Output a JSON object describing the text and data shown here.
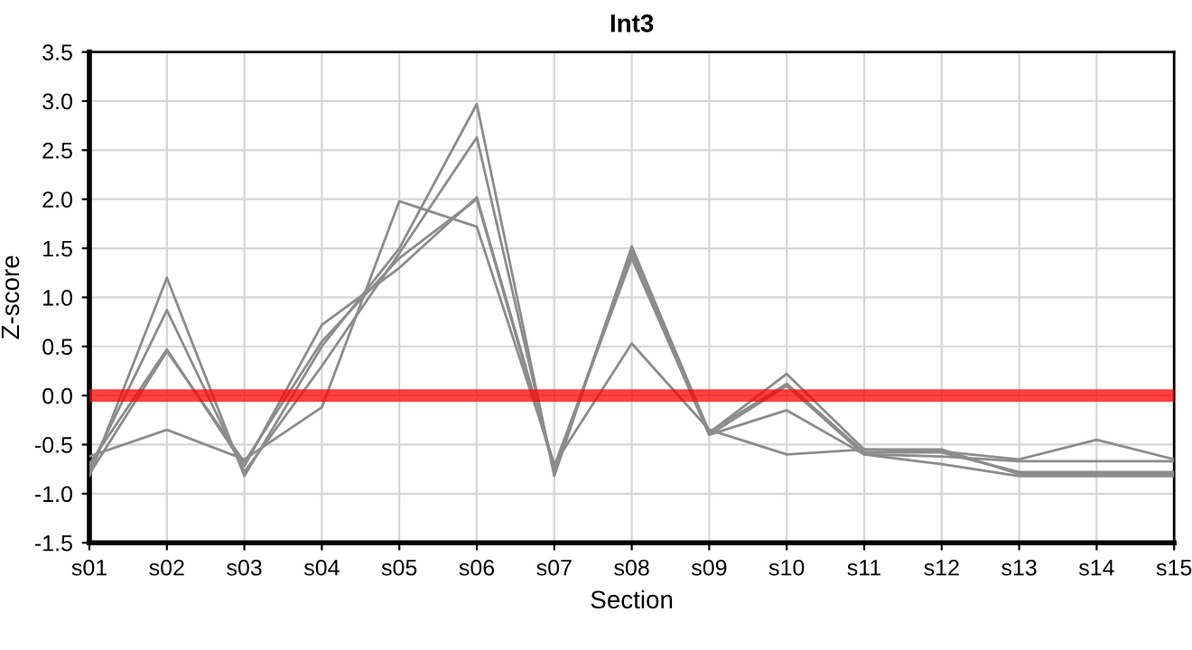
{
  "chart_data": {
    "type": "line",
    "title": "Int3",
    "xlabel": "Section",
    "ylabel": "Z-score",
    "categories": [
      "s01",
      "s02",
      "s03",
      "s04",
      "s05",
      "s06",
      "s07",
      "s08",
      "s09",
      "s10",
      "s11",
      "s12",
      "s13",
      "s14",
      "s15"
    ],
    "series": [
      {
        "color": "#8c8c8c",
        "values": [
          -0.82,
          1.2,
          -0.82,
          0.5,
          1.5,
          2.97,
          -0.82,
          1.52,
          -0.38,
          0.22,
          -0.55,
          -0.55,
          -0.8,
          -0.8,
          -0.8
        ]
      },
      {
        "color": "#8c8c8c",
        "values": [
          -0.75,
          0.87,
          -0.78,
          0.3,
          1.45,
          2.63,
          -0.78,
          1.5,
          -0.37,
          0.12,
          -0.58,
          -0.58,
          -0.78,
          -0.78,
          -0.78
        ]
      },
      {
        "color": "#8c8c8c",
        "values": [
          -0.7,
          0.47,
          -0.72,
          0.72,
          1.3,
          2.02,
          -0.72,
          1.4,
          -0.4,
          0.1,
          -0.6,
          -0.62,
          -0.67,
          -0.67,
          -0.67
        ]
      },
      {
        "color": "#8c8c8c",
        "values": [
          -0.62,
          -0.35,
          -0.65,
          -0.12,
          1.98,
          1.72,
          -0.7,
          0.53,
          -0.35,
          -0.6,
          -0.55,
          -0.57,
          -0.65,
          -0.45,
          -0.65
        ]
      },
      {
        "color": "#8c8c8c",
        "values": [
          -0.8,
          0.45,
          -0.68,
          0.55,
          1.4,
          2.0,
          -0.75,
          1.45,
          -0.4,
          -0.15,
          -0.6,
          -0.7,
          -0.82,
          -0.82,
          -0.82
        ]
      }
    ],
    "ylim": [
      -1.5,
      3.5
    ],
    "yticks": [
      {
        "value": -1.5,
        "label": "-1.5"
      },
      {
        "value": -1.0,
        "label": "-1.0"
      },
      {
        "value": -0.5,
        "label": "-0.5"
      },
      {
        "value": 0,
        "label": "0.0"
      },
      {
        "value": 0.5,
        "label": "0.5"
      },
      {
        "value": 1.0,
        "label": "1.0"
      },
      {
        "value": 1.5,
        "label": "1.5"
      },
      {
        "value": 2.0,
        "label": "2.0"
      },
      {
        "value": 2.5,
        "label": "2.5"
      },
      {
        "value": 3.0,
        "label": "3.0"
      },
      {
        "value": 3.5,
        "label": "3.5"
      }
    ],
    "ref_lines": [
      {
        "axis": "y",
        "value": 0,
        "color": "#ff0000"
      }
    ],
    "grid": true,
    "marker": "none",
    "line_style": "solid"
  }
}
